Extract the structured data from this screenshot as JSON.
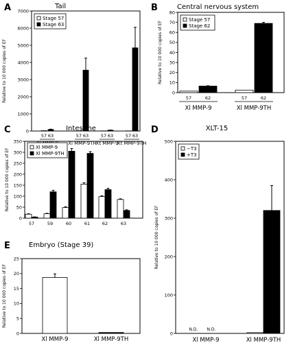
{
  "chart_data": [
    {
      "panel": "A",
      "type": "bar",
      "title": "Tail",
      "ylabel": "Relative to 10 000 copies of EF",
      "ylim": [
        0,
        7000
      ],
      "yticks": [
        0,
        1000,
        2000,
        3000,
        4000,
        5000,
        6000,
        7000
      ],
      "legend": {
        "placement": "top-left",
        "entries": [
          "Stage 57",
          "Stage 63"
        ],
        "fills": [
          "#ffffff",
          "#000000"
        ]
      },
      "group_labels": [
        "Xl MMP-9",
        "Xl MMP-9TH",
        "Xt MMP-9",
        "Xt MMP-9TH"
      ],
      "bar_labels": [
        [
          "57",
          "63"
        ],
        [
          "57",
          "63"
        ],
        [
          "57",
          "63"
        ],
        [
          "57",
          "63"
        ]
      ],
      "series": [
        {
          "name": "Stage 57",
          "values": [
            20,
            10,
            10,
            10
          ],
          "errors": [
            0,
            0,
            0,
            0
          ]
        },
        {
          "name": "Stage 63",
          "values": [
            90,
            3550,
            50,
            4850
          ],
          "errors": [
            20,
            700,
            10,
            1200
          ]
        }
      ]
    },
    {
      "panel": "B",
      "type": "bar",
      "title": "Central nervous system",
      "ylabel": "Relative to 10 000 copies of EF",
      "ylim": [
        0,
        80
      ],
      "yticks": [
        0,
        10,
        20,
        30,
        40,
        50,
        60,
        70,
        80
      ],
      "legend": {
        "placement": "top-left",
        "entries": [
          "Stage 57",
          "Stage 62"
        ],
        "fills": [
          "#ffffff",
          "#000000"
        ]
      },
      "group_labels": [
        "Xl MMP-9",
        "Xl MMP-9TH"
      ],
      "bar_labels": [
        [
          "57",
          "62"
        ],
        [
          "57",
          "62"
        ]
      ],
      "series": [
        {
          "name": "Stage 57",
          "values": [
            1.5,
            2.5
          ],
          "errors": [
            0,
            0
          ]
        },
        {
          "name": "Stage 62",
          "values": [
            6.5,
            69
          ],
          "errors": [
            0.4,
            1
          ]
        }
      ]
    },
    {
      "panel": "C",
      "type": "bar",
      "title": "Intestine",
      "ylabel": "Relative to 10 000 copies of EF",
      "ylim": [
        0,
        350
      ],
      "yticks": [
        0,
        50,
        100,
        150,
        200,
        250,
        300,
        350
      ],
      "legend": {
        "placement": "top-left",
        "entries": [
          "Xl MMP-9",
          "Xl MMP-9TH"
        ],
        "fills": [
          "#ffffff",
          "#000000"
        ]
      },
      "categories": [
        "57",
        "59",
        "60",
        "61",
        "62",
        "63"
      ],
      "series": [
        {
          "name": "Xl MMP-9",
          "values": [
            18,
            20,
            48,
            155,
            98,
            85
          ],
          "errors": [
            2,
            2,
            4,
            6,
            4,
            3
          ]
        },
        {
          "name": "Xl MMP-9TH",
          "values": [
            5,
            120,
            305,
            295,
            130,
            35
          ],
          "errors": [
            1,
            7,
            12,
            8,
            6,
            3
          ]
        }
      ]
    },
    {
      "panel": "D",
      "type": "bar",
      "title": "XLT-15",
      "ylabel": "Relative to 10 000 copies of EF",
      "ylim": [
        0,
        500
      ],
      "yticks": [
        0,
        100,
        200,
        300,
        400,
        500
      ],
      "legend": {
        "placement": "top-left",
        "entries": [
          "−T3",
          "+T3"
        ],
        "fills": [
          "#ffffff",
          "#000000"
        ]
      },
      "categories": [
        "Xl MMP-9",
        "Xl MMP-9TH"
      ],
      "series": [
        {
          "name": "−T3",
          "values": [
            0,
            2
          ],
          "errors": [
            0,
            0
          ]
        },
        {
          "name": "+T3",
          "values": [
            0,
            320
          ],
          "errors": [
            0,
            65
          ]
        }
      ],
      "annotations": [
        "N.D.",
        "N.D."
      ]
    },
    {
      "panel": "E",
      "type": "bar",
      "title": "Embryo (Stage 39)",
      "ylabel": "Relative to 10 000 copies of EF",
      "ylim": [
        0,
        25
      ],
      "yticks": [
        0,
        5,
        10,
        15,
        20,
        25
      ],
      "categories": [
        "Xl MMP-9",
        "Xl MMP-9TH"
      ],
      "series": [
        {
          "values": [
            18.7,
            0.3
          ],
          "fills": [
            "#ffffff",
            "#000000"
          ],
          "errors": [
            1.2,
            0
          ]
        }
      ]
    }
  ]
}
